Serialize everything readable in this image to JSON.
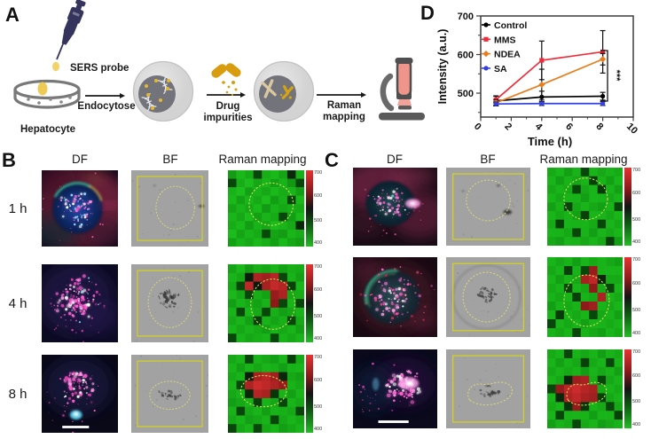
{
  "panel_a": {
    "label": "A",
    "sers_probe": "SERS probe",
    "hepatocyte": "Hepatocyte",
    "step1": "Endocytose",
    "step2_line1": "Drug",
    "step2_line2": "impurities",
    "step3_line1": "Raman",
    "step3_line2": "mapping"
  },
  "panel_b": {
    "label": "B",
    "col_headers": [
      "DF",
      "BF",
      "Raman mapping"
    ],
    "row_labels": [
      "1 h",
      "4 h",
      "8 h"
    ]
  },
  "panel_c": {
    "label": "C",
    "col_headers": [
      "DF",
      "BF",
      "Raman mapping"
    ]
  },
  "panel_d": {
    "label": "D"
  },
  "colorbar_ticks": [
    "700",
    "600",
    "500",
    "400"
  ],
  "chart_data": {
    "type": "line",
    "x": [
      1,
      4,
      8
    ],
    "series": [
      {
        "name": "Control",
        "color": "#000000",
        "marker": "circle",
        "values": [
          480,
          490,
          492
        ],
        "errors": [
          12,
          15,
          10
        ]
      },
      {
        "name": "MMS",
        "color": "#ee2d3c",
        "marker": "square",
        "values": [
          483,
          585,
          607
        ],
        "errors": [
          10,
          50,
          55
        ]
      },
      {
        "name": "NDEA",
        "color": "#e87d1e",
        "marker": "diamond",
        "values": [
          475,
          522,
          588
        ],
        "errors": [
          8,
          40,
          15
        ]
      },
      {
        "name": "SA",
        "color": "#3340e8",
        "marker": "circle",
        "values": [
          472,
          473,
          473
        ],
        "errors": [
          5,
          5,
          5
        ]
      }
    ],
    "xlabel": "Time (h)",
    "ylabel": "Intensity (a.u.)",
    "xticks": [
      0,
      2,
      4,
      6,
      8,
      10
    ],
    "yticks": [
      500,
      600,
      700
    ],
    "xlim": [
      0,
      10
    ],
    "ylim": [
      438,
      700
    ],
    "significance": "***",
    "legend_position": "top-left"
  },
  "heatmaps": {
    "b": [
      [
        [
          455,
          420,
          438,
          530,
          432,
          418,
          445,
          558,
          430
        ],
        [
          530,
          435,
          415,
          442,
          422,
          448,
          428,
          460,
          530
        ],
        [
          428,
          412,
          450,
          425,
          440,
          418,
          435,
          425,
          452
        ],
        [
          418,
          448,
          422,
          438,
          415,
          452,
          430,
          530,
          420
        ],
        [
          445,
          425,
          440,
          418,
          458,
          428,
          442,
          432,
          438
        ],
        [
          422,
          440,
          415,
          450,
          425,
          438,
          530,
          452,
          418
        ],
        [
          435,
          418,
          455,
          428,
          442,
          415,
          425,
          440,
          558
        ],
        [
          415,
          445,
          425,
          438,
          528,
          445,
          455,
          422,
          435
        ],
        [
          448,
          428,
          440,
          420,
          432,
          450,
          418,
          442,
          455
        ]
      ],
      [
        [
          445,
          420,
          455,
          430,
          440,
          425,
          448,
          432,
          438
        ],
        [
          425,
          440,
          570,
          655,
          645,
          660,
          530,
          428,
          450
        ],
        [
          438,
          530,
          668,
          575,
          650,
          672,
          660,
          535,
          422
        ],
        [
          420,
          442,
          530,
          432,
          448,
          638,
          655,
          440,
          435
        ],
        [
          452,
          425,
          440,
          448,
          428,
          630,
          530,
          425,
          530
        ],
        [
          428,
          530,
          422,
          440,
          530,
          432,
          452,
          442,
          425
        ],
        [
          440,
          425,
          450,
          535,
          428,
          445,
          430,
          530,
          438
        ],
        [
          422,
          442,
          428,
          438,
          452,
          425,
          440,
          428,
          450
        ],
        [
          530,
          428,
          442,
          432,
          425,
          530,
          428,
          440,
          425
        ]
      ],
      [
        [
          440,
          425,
          530,
          428,
          440,
          452,
          425,
          535,
          438
        ],
        [
          425,
          450,
          428,
          442,
          425,
          430,
          452,
          428,
          422
        ],
        [
          438,
          428,
          570,
          650,
          665,
          645,
          560,
          440,
          450
        ],
        [
          425,
          530,
          655,
          678,
          668,
          655,
          638,
          428,
          440
        ],
        [
          440,
          428,
          560,
          662,
          652,
          545,
          428,
          450,
          425
        ],
        [
          452,
          440,
          425,
          535,
          428,
          442,
          530,
          425,
          440
        ],
        [
          428,
          530,
          440,
          425,
          452,
          428,
          430,
          440,
          530
        ],
        [
          440,
          425,
          450,
          442,
          428,
          530,
          440,
          425,
          438
        ],
        [
          530,
          440,
          425,
          530,
          440,
          428,
          452,
          440,
          425
        ]
      ]
    ],
    "c": [
      [
        [
          438,
          422,
          450,
          428,
          530,
          425,
          440,
          428,
          438
        ],
        [
          425,
          452,
          428,
          440,
          425,
          535,
          428,
          450,
          422
        ],
        [
          440,
          425,
          438,
          530,
          440,
          425,
          540,
          428,
          450
        ],
        [
          422,
          440,
          425,
          428,
          452,
          422,
          428,
          440,
          425
        ],
        [
          450,
          428,
          530,
          440,
          425,
          440,
          450,
          425,
          530
        ],
        [
          425,
          440,
          428,
          450,
          535,
          425,
          428,
          440,
          422
        ],
        [
          438,
          535,
          425,
          428,
          425,
          438,
          530,
          425,
          440
        ],
        [
          425,
          428,
          440,
          530,
          428,
          452,
          425,
          438,
          422
        ],
        [
          440,
          450,
          425,
          428,
          440,
          425,
          440,
          535,
          452
        ]
      ],
      [
        [
          425,
          440,
          428,
          452,
          425,
          438,
          428,
          440,
          450
        ],
        [
          440,
          425,
          535,
          428,
          530,
          638,
          428,
          425,
          428
        ],
        [
          425,
          450,
          428,
          440,
          650,
          668,
          560,
          438,
          440
        ],
        [
          438,
          428,
          530,
          425,
          440,
          632,
          440,
          530,
          425
        ],
        [
          428,
          440,
          425,
          535,
          428,
          440,
          655,
          425,
          440
        ],
        [
          452,
          425,
          438,
          428,
          632,
          645,
          428,
          440,
          425
        ],
        [
          425,
          540,
          428,
          440,
          425,
          530,
          440,
          428,
          450
        ],
        [
          530,
          425,
          440,
          428,
          450,
          425,
          428,
          438,
          425
        ],
        [
          428,
          440,
          425,
          530,
          428,
          440,
          450,
          425,
          438
        ]
      ],
      [
        [
          438,
          425,
          530,
          428,
          440,
          425,
          452,
          428,
          438
        ],
        [
          425,
          450,
          428,
          440,
          535,
          438,
          425,
          530,
          428
        ],
        [
          440,
          425,
          438,
          428,
          452,
          425,
          440,
          428,
          450
        ],
        [
          425,
          440,
          560,
          642,
          652,
          432,
          530,
          440,
          425
        ],
        [
          530,
          635,
          665,
          678,
          662,
          652,
          440,
          425,
          438
        ],
        [
          428,
          560,
          655,
          668,
          652,
          645,
          535,
          440,
          425
        ],
        [
          438,
          425,
          545,
          635,
          545,
          428,
          438,
          530,
          440
        ],
        [
          425,
          530,
          428,
          425,
          428,
          452,
          425,
          428,
          535
        ],
        [
          450,
          428,
          438,
          530,
          438,
          425,
          452,
          440,
          428
        ]
      ]
    ]
  }
}
